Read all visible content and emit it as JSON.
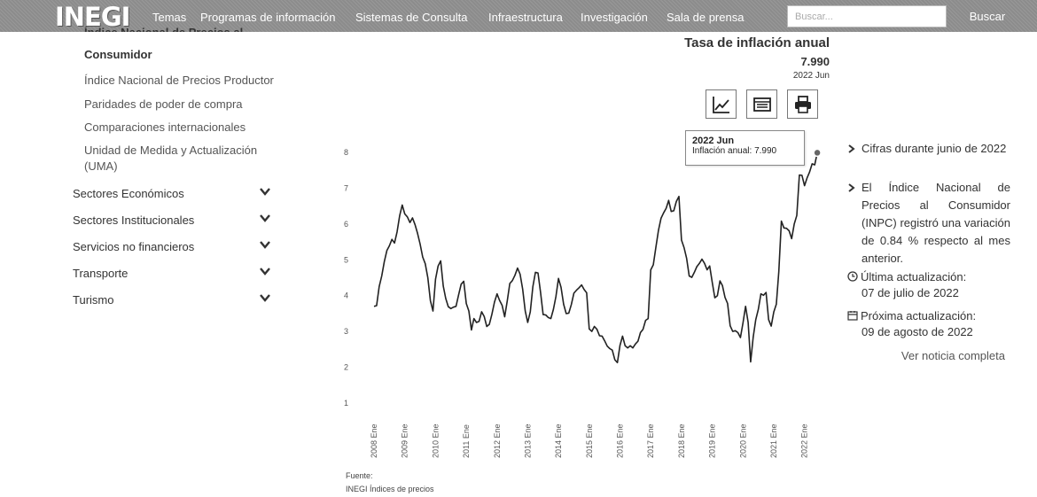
{
  "header": {
    "logo": "INEGI",
    "nav": [
      "Temas",
      "Programas de información",
      "Sistemas de Consulta",
      "Infraestructura",
      "Investigación",
      "Sala de prensa"
    ],
    "search_placeholder": "Buscar...",
    "search_button": "Buscar"
  },
  "sidebar": {
    "active_cut": "Índice Nacional de Precios al",
    "active_label": "Consumidor",
    "sub_items": [
      "Índice Nacional de Precios Productor",
      "Paridades de poder de compra",
      "Comparaciones internacionales",
      "Unidad de Medida y Actualización (UMA)"
    ],
    "categories": [
      "Sectores Económicos",
      "Sectores Institucionales",
      "Servicios no financieros",
      "Transporte",
      "Turismo"
    ]
  },
  "chart_panel": {
    "title": "Tasa de inflación anual",
    "value": "7.990",
    "period": "2022 Jun",
    "buttons": [
      "line-chart-icon",
      "table-icon",
      "print-icon"
    ],
    "tooltip": {
      "period": "2022 Jun",
      "label": "Inflación anual",
      "value": "7.990"
    },
    "source_label": "Fuente:",
    "source_text": "INEGI Índices de precios"
  },
  "chart_data": {
    "type": "line",
    "title": "Tasa de inflación anual",
    "xlabel": "",
    "ylabel": "",
    "ylim": [
      1,
      8
    ],
    "yticks": [
      1,
      2,
      3,
      4,
      5,
      6,
      7,
      8
    ],
    "xticks": [
      "2008 Ene",
      "2009 Ene",
      "2010 Ene",
      "2011 Ene",
      "2012 Ene",
      "2013 Ene",
      "2014 Ene",
      "2015 Ene",
      "2016 Ene",
      "2017 Ene",
      "2018 Ene",
      "2019 Ene",
      "2020 Ene",
      "2021 Ene",
      "2022 Ene"
    ],
    "series": [
      {
        "color": "#222222",
        "start": "2008 Ene",
        "values": [
          3.7,
          3.72,
          4.25,
          4.55,
          4.95,
          5.26,
          5.39,
          5.57,
          5.47,
          5.78,
          6.23,
          6.53,
          6.28,
          6.2,
          6.04,
          6.17,
          5.98,
          5.74,
          5.44,
          5.08,
          4.89,
          4.5,
          3.86,
          3.57,
          4.46,
          4.83,
          4.97,
          4.27,
          3.92,
          3.69,
          3.64,
          3.68,
          3.7,
          4.02,
          4.32,
          4.4,
          3.78,
          3.57,
          3.04,
          3.36,
          3.25,
          3.28,
          3.55,
          3.42,
          3.14,
          3.2,
          3.48,
          3.82,
          4.05,
          3.87,
          3.73,
          3.41,
          3.85,
          4.34,
          4.42,
          4.57,
          4.77,
          4.6,
          4.18,
          3.57,
          3.25,
          3.55,
          4.25,
          4.65,
          4.63,
          4.09,
          3.47,
          3.46,
          3.39,
          3.36,
          3.62,
          3.97,
          4.48,
          4.23,
          3.76,
          3.5,
          3.51,
          3.75,
          4.07,
          4.15,
          4.22,
          4.3,
          4.17,
          4.08,
          3.07,
          3.0,
          3.14,
          3.06,
          2.88,
          2.87,
          2.74,
          2.59,
          2.52,
          2.48,
          2.21,
          2.13,
          2.61,
          2.87,
          2.6,
          2.54,
          2.6,
          2.54,
          2.65,
          2.73,
          2.97,
          3.06,
          3.31,
          3.36,
          4.72,
          4.86,
          5.35,
          5.82,
          6.16,
          6.31,
          6.44,
          6.66,
          6.35,
          6.37,
          6.63,
          6.77,
          5.55,
          5.34,
          5.04,
          4.55,
          4.51,
          4.65,
          4.81,
          4.9,
          5.02,
          4.9,
          4.72,
          4.83,
          4.37,
          3.94,
          4.0,
          4.41,
          4.28,
          3.95,
          3.78,
          3.16,
          3.0,
          3.02,
          2.97,
          2.83,
          3.24,
          3.7,
          3.25,
          2.15,
          2.84,
          3.33,
          3.62,
          4.05,
          4.01,
          4.09,
          3.33,
          3.15,
          3.54,
          3.76,
          4.67,
          6.08,
          5.89,
          5.88,
          5.81,
          5.59,
          6.0,
          6.24,
          7.37,
          7.36,
          7.07,
          7.28,
          7.45,
          7.68,
          7.65,
          7.99
        ]
      }
    ]
  },
  "right_panel": {
    "bullets": [
      "Cifras durante junio de 2022",
      "El Índice Nacional de Precios al Consumidor (INPC) registró una variación de 0.84 % respecto al mes anterior."
    ],
    "last_update_label": "Última actualización:",
    "last_update_date": "07 de julio de 2022",
    "next_update_label": "Próxima actualización:",
    "next_update_date": "09 de agosto de 2022",
    "news_link": "Ver noticia completa"
  },
  "colors": {
    "nav_bg": "#8c8c8c",
    "line": "#222222",
    "text": "#333333"
  }
}
